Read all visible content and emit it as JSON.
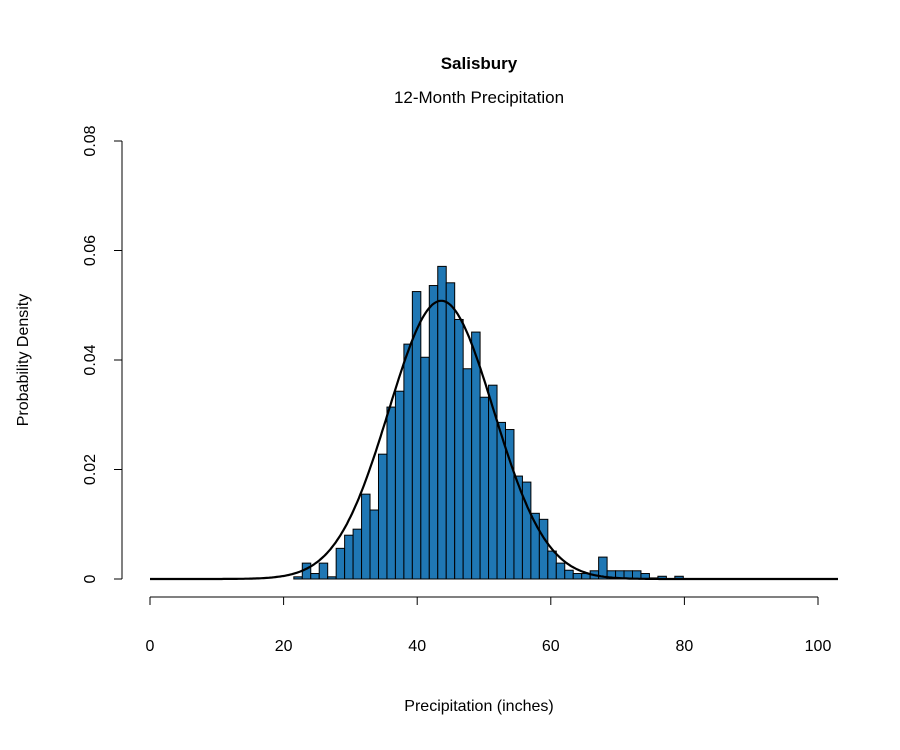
{
  "chart_data": {
    "type": "bar",
    "subtype": "histogram with normal density curve",
    "title": "Salisbury",
    "subtitle": "12-Month Precipitation",
    "xlabel": "Precipitation (inches)",
    "ylabel": "Probability Density",
    "xlim": [
      0,
      100
    ],
    "ylim": [
      0,
      0.08
    ],
    "x_ticks": [
      "0",
      "20",
      "40",
      "60",
      "80",
      "100"
    ],
    "y_ticks": [
      "0",
      "0.02",
      "0.04",
      "0.06",
      "0.08"
    ],
    "grid": false,
    "bar_color": "#1f77b4",
    "curve_color": "#000000",
    "bin_start": 21.53,
    "bin_width": 1.2675,
    "densities": [
      0.0004,
      0.0029,
      0.001,
      0.0029,
      0.0004,
      0.0056,
      0.008,
      0.0091,
      0.0155,
      0.0126,
      0.0228,
      0.0314,
      0.0343,
      0.0429,
      0.0525,
      0.0405,
      0.0536,
      0.0571,
      0.0541,
      0.0474,
      0.0384,
      0.0451,
      0.0332,
      0.0354,
      0.0286,
      0.0273,
      0.0188,
      0.0177,
      0.012,
      0.0109,
      0.0051,
      0.0029,
      0.0016,
      0.001,
      0.001,
      0.0015,
      0.004,
      0.0015,
      0.0015,
      0.0015,
      0.0015,
      0.001,
      0.0002,
      0.0005,
      0,
      0.0005
    ],
    "normal_curve": {
      "mean": 43.6,
      "sd": 7.85,
      "x_range": [
        0,
        103
      ]
    }
  }
}
